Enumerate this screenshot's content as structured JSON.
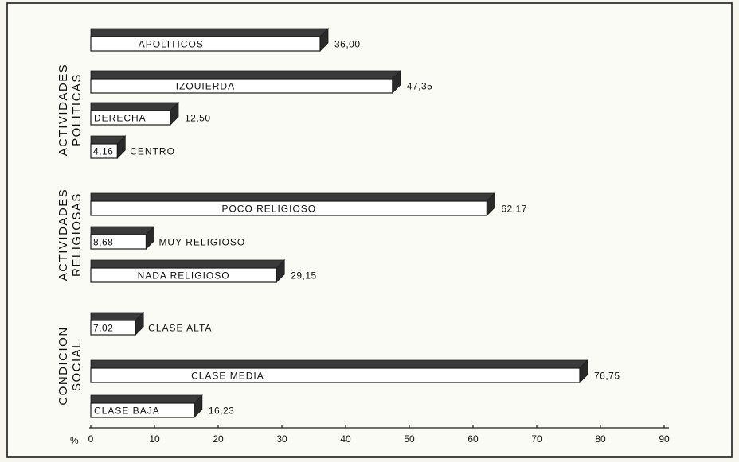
{
  "chart_data": {
    "type": "bar",
    "orientation": "horizontal",
    "x_unit_label": "%",
    "xlim": [
      0,
      90
    ],
    "x_ticks": [
      0,
      10,
      20,
      30,
      40,
      50,
      60,
      70,
      80,
      90
    ],
    "groups": [
      {
        "title_lines": [
          "ACTIVIDADES",
          "POLITICAS"
        ],
        "bars": [
          {
            "label": "APOLITICOS",
            "value": 36.0,
            "value_text": "36,00"
          },
          {
            "label": "IZQUIERDA",
            "value": 47.35,
            "value_text": "47,35"
          },
          {
            "label": "DERECHA",
            "value": 12.5,
            "value_text": "12,50"
          },
          {
            "label": "CENTRO",
            "value": 4.16,
            "value_text": "4,16"
          }
        ]
      },
      {
        "title_lines": [
          "ACTIVIDADES",
          "RELIGIOSAS"
        ],
        "bars": [
          {
            "label": "POCO  RELIGIOSO",
            "value": 62.17,
            "value_text": "62,17"
          },
          {
            "label": "MUY  RELIGIOSO",
            "value": 8.68,
            "value_text": "8,68"
          },
          {
            "label": "NADA RELIGIOSO",
            "value": 29.15,
            "value_text": "29,15"
          }
        ]
      },
      {
        "title_lines": [
          "CONDICION",
          "SOCIAL"
        ],
        "bars": [
          {
            "label": "CLASE ALTA",
            "value": 7.02,
            "value_text": "7,02"
          },
          {
            "label": "CLASE  MEDIA",
            "value": 76.75,
            "value_text": "76,75"
          },
          {
            "label": "CLASE  BAJA",
            "value": 16.23,
            "value_text": "16,23"
          }
        ]
      }
    ]
  }
}
